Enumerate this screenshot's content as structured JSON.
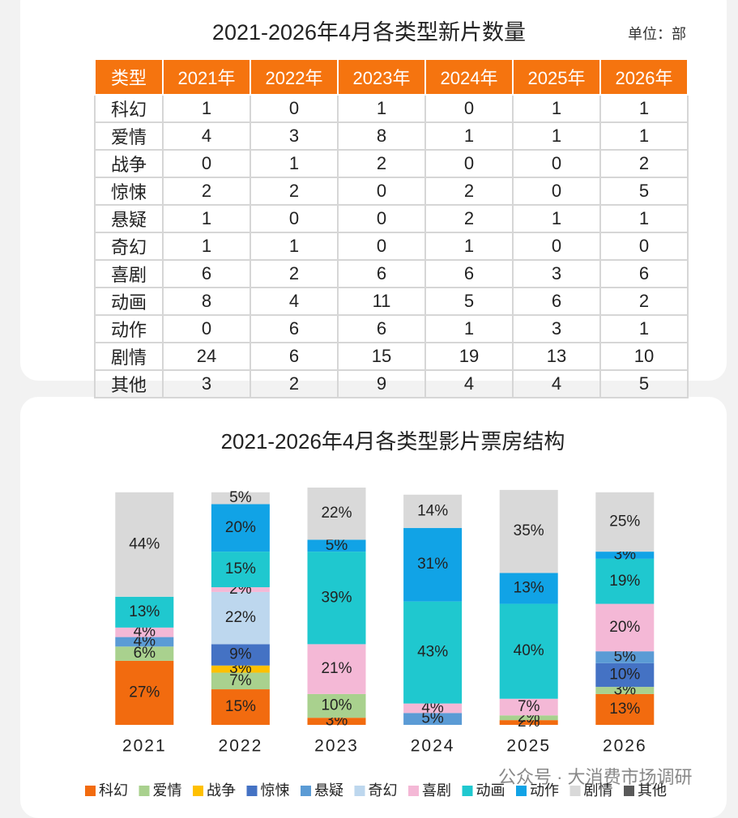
{
  "table": {
    "title": "2021-2026年4月各类型新片数量",
    "unit": "单位：部",
    "header": [
      "类型",
      "2021年",
      "2022年",
      "2023年",
      "2024年",
      "2025年",
      "2026年"
    ],
    "rows": [
      [
        "科幻",
        1,
        0,
        1,
        0,
        1,
        1
      ],
      [
        "爱情",
        4,
        3,
        8,
        1,
        1,
        1
      ],
      [
        "战争",
        0,
        1,
        2,
        0,
        0,
        2
      ],
      [
        "惊悚",
        2,
        2,
        0,
        2,
        0,
        5
      ],
      [
        "悬疑",
        1,
        0,
        0,
        2,
        1,
        1
      ],
      [
        "奇幻",
        1,
        1,
        0,
        1,
        0,
        0
      ],
      [
        "喜剧",
        6,
        2,
        6,
        6,
        3,
        6
      ],
      [
        "动画",
        8,
        4,
        11,
        5,
        6,
        2
      ],
      [
        "动作",
        0,
        6,
        6,
        1,
        3,
        1
      ],
      [
        "剧情",
        24,
        6,
        15,
        19,
        13,
        10
      ],
      [
        "其他",
        3,
        2,
        9,
        4,
        4,
        5
      ]
    ]
  },
  "watermark": "公众号 · 大消费市场调研",
  "chart_data": {
    "type": "stacked_bar",
    "title": "2021-2026年4月各类型影片票房结构",
    "categories": [
      "2021",
      "2022",
      "2023",
      "2024",
      "2025",
      "2026"
    ],
    "ylim": [
      0,
      100
    ],
    "series": [
      {
        "name": "科幻",
        "color": "#f26b0f",
        "values": [
          27,
          15,
          3,
          null,
          2,
          13
        ],
        "value_labels": [
          "27%",
          "15%",
          "3%",
          null,
          "2%",
          "13%"
        ]
      },
      {
        "name": "爱情",
        "color": "#a9d18e",
        "values": [
          6,
          7,
          10,
          null,
          2,
          3
        ],
        "value_labels": [
          "6%",
          "7%",
          "10%",
          null,
          "2%",
          "3%"
        ]
      },
      {
        "name": "战争",
        "color": "#ffc000",
        "values": [
          null,
          3,
          null,
          null,
          null,
          null
        ],
        "value_labels": [
          null,
          "3%",
          null,
          null,
          null,
          null
        ]
      },
      {
        "name": "惊悚",
        "color": "#4472c4",
        "values": [
          null,
          9,
          null,
          null,
          null,
          10
        ],
        "value_labels": [
          null,
          "9%",
          null,
          null,
          null,
          "10%"
        ]
      },
      {
        "name": "悬疑",
        "color": "#5b9bd5",
        "values": [
          4,
          null,
          null,
          5,
          null,
          5
        ],
        "value_labels": [
          "4%",
          null,
          null,
          "5%",
          null,
          "5%"
        ]
      },
      {
        "name": "奇幻",
        "color": "#bdd7ee",
        "values": [
          null,
          22,
          null,
          null,
          null,
          null
        ],
        "value_labels": [
          null,
          "22%",
          null,
          null,
          null,
          null
        ]
      },
      {
        "name": "喜剧",
        "color": "#f4b8d6",
        "values": [
          4,
          2,
          21,
          4,
          7,
          20
        ],
        "value_labels": [
          "4%",
          "2%",
          "21%",
          "4%",
          "7%",
          "20%"
        ]
      },
      {
        "name": "动画",
        "color": "#1fc8cf",
        "values": [
          13,
          15,
          39,
          43,
          40,
          19
        ],
        "value_labels": [
          "13%",
          "15%",
          "39%",
          "43%",
          "40%",
          "19%"
        ]
      },
      {
        "name": "动作",
        "color": "#11a3e6",
        "values": [
          null,
          20,
          5,
          31,
          13,
          3
        ],
        "value_labels": [
          null,
          "20%",
          "5%",
          "31%",
          "13%",
          "3%"
        ]
      },
      {
        "name": "剧情",
        "color": "#d9d9d9",
        "values": [
          44,
          5,
          22,
          14,
          35,
          25
        ],
        "value_labels": [
          "44%",
          "5%",
          "22%",
          "14%",
          "35%",
          "25%"
        ]
      },
      {
        "name": "其他",
        "color": "#595959",
        "values": [
          null,
          null,
          null,
          null,
          null,
          null
        ],
        "value_labels": [
          null,
          null,
          null,
          null,
          null,
          null
        ]
      }
    ]
  }
}
